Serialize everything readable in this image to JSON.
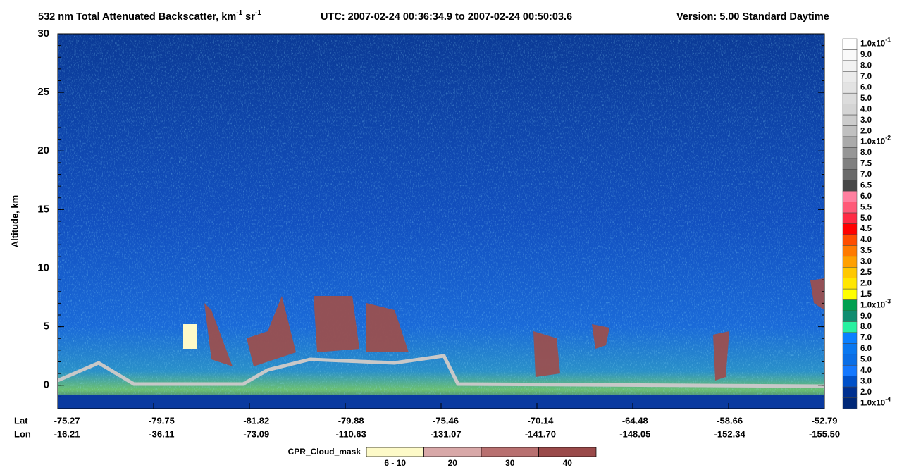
{
  "chart_data": {
    "type": "curtain",
    "title": {
      "main": "532 nm Total Attenuated Backscatter, km",
      "sup1": "-1",
      "unit2": " sr",
      "sup2": "-1",
      "utc": "UTC:  2007-02-24 00:36:34.9  to  2007-02-24 00:50:03.6",
      "version": "Version: 5.00  Standard  Daytime"
    },
    "ylabel": "Altitude, km",
    "ylim": [
      -2,
      30
    ],
    "yticks": [
      0,
      5,
      10,
      15,
      20,
      25,
      30
    ],
    "x_rows": [
      {
        "name": "Lat",
        "labels": [
          "-75.27",
          "-79.75",
          "-81.82",
          "-79.88",
          "-75.46",
          "-70.14",
          "-64.48",
          "-58.66",
          "-52.79"
        ]
      },
      {
        "name": "Lon",
        "labels": [
          "-16.21",
          "-36.11",
          "-73.09",
          "-110.63",
          "-131.07",
          "-141.70",
          "-148.05",
          "-152.34",
          "-155.50"
        ]
      }
    ],
    "colorbar": [
      {
        "label": "1.0x10",
        "sup": "-1",
        "color": "#ffffff"
      },
      {
        "label": "9.0",
        "color": "#fafafa"
      },
      {
        "label": "8.0",
        "color": "#f2f2f2"
      },
      {
        "label": "7.0",
        "color": "#ebebeb"
      },
      {
        "label": "6.0",
        "color": "#e3e3e3"
      },
      {
        "label": "5.0",
        "color": "#dcdcdc"
      },
      {
        "label": "4.0",
        "color": "#d4d4d4"
      },
      {
        "label": "3.0",
        "color": "#cccccc"
      },
      {
        "label": "2.0",
        "color": "#c0c0c0"
      },
      {
        "label": "1.0x10",
        "sup": "-2",
        "color": "#aaaaaa"
      },
      {
        "label": "8.0",
        "color": "#969696"
      },
      {
        "label": "7.5",
        "color": "#808080"
      },
      {
        "label": "7.0",
        "color": "#6a6a6a"
      },
      {
        "label": "6.5",
        "color": "#474747"
      },
      {
        "label": "6.0",
        "color": "#ff80a0"
      },
      {
        "label": "5.5",
        "color": "#ff5a78"
      },
      {
        "label": "5.0",
        "color": "#ff2a44"
      },
      {
        "label": "4.5",
        "color": "#ff0000"
      },
      {
        "label": "4.0",
        "color": "#ff4d00"
      },
      {
        "label": "3.5",
        "color": "#ff7a00"
      },
      {
        "label": "3.0",
        "color": "#ffa000"
      },
      {
        "label": "2.5",
        "color": "#ffc800"
      },
      {
        "label": "2.0",
        "color": "#ffe600"
      },
      {
        "label": "1.5",
        "color": "#ffff00"
      },
      {
        "label": "1.0x10",
        "sup": "-3",
        "color": "#00a050"
      },
      {
        "label": "9.0",
        "color": "#108c70"
      },
      {
        "label": "8.0",
        "color": "#28f0a0"
      },
      {
        "label": "7.0",
        "color": "#0a80ff"
      },
      {
        "label": "6.0",
        "color": "#0a78f0"
      },
      {
        "label": "5.0",
        "color": "#0a6ee6"
      },
      {
        "label": "4.0",
        "color": "#1478ff"
      },
      {
        "label": "3.0",
        "color": "#0050c8"
      },
      {
        "label": "2.0",
        "color": "#003090"
      },
      {
        "label": "1.0x10",
        "sup": "-4",
        "color": "#002878"
      }
    ],
    "cpr_legend": {
      "title": "CPR_Cloud_mask",
      "labels": [
        "6 - 10",
        "20",
        "30",
        "40"
      ],
      "colors": [
        "#fdfac8",
        "#d8a8a8",
        "#b87070",
        "#9a4a4a"
      ]
    }
  }
}
